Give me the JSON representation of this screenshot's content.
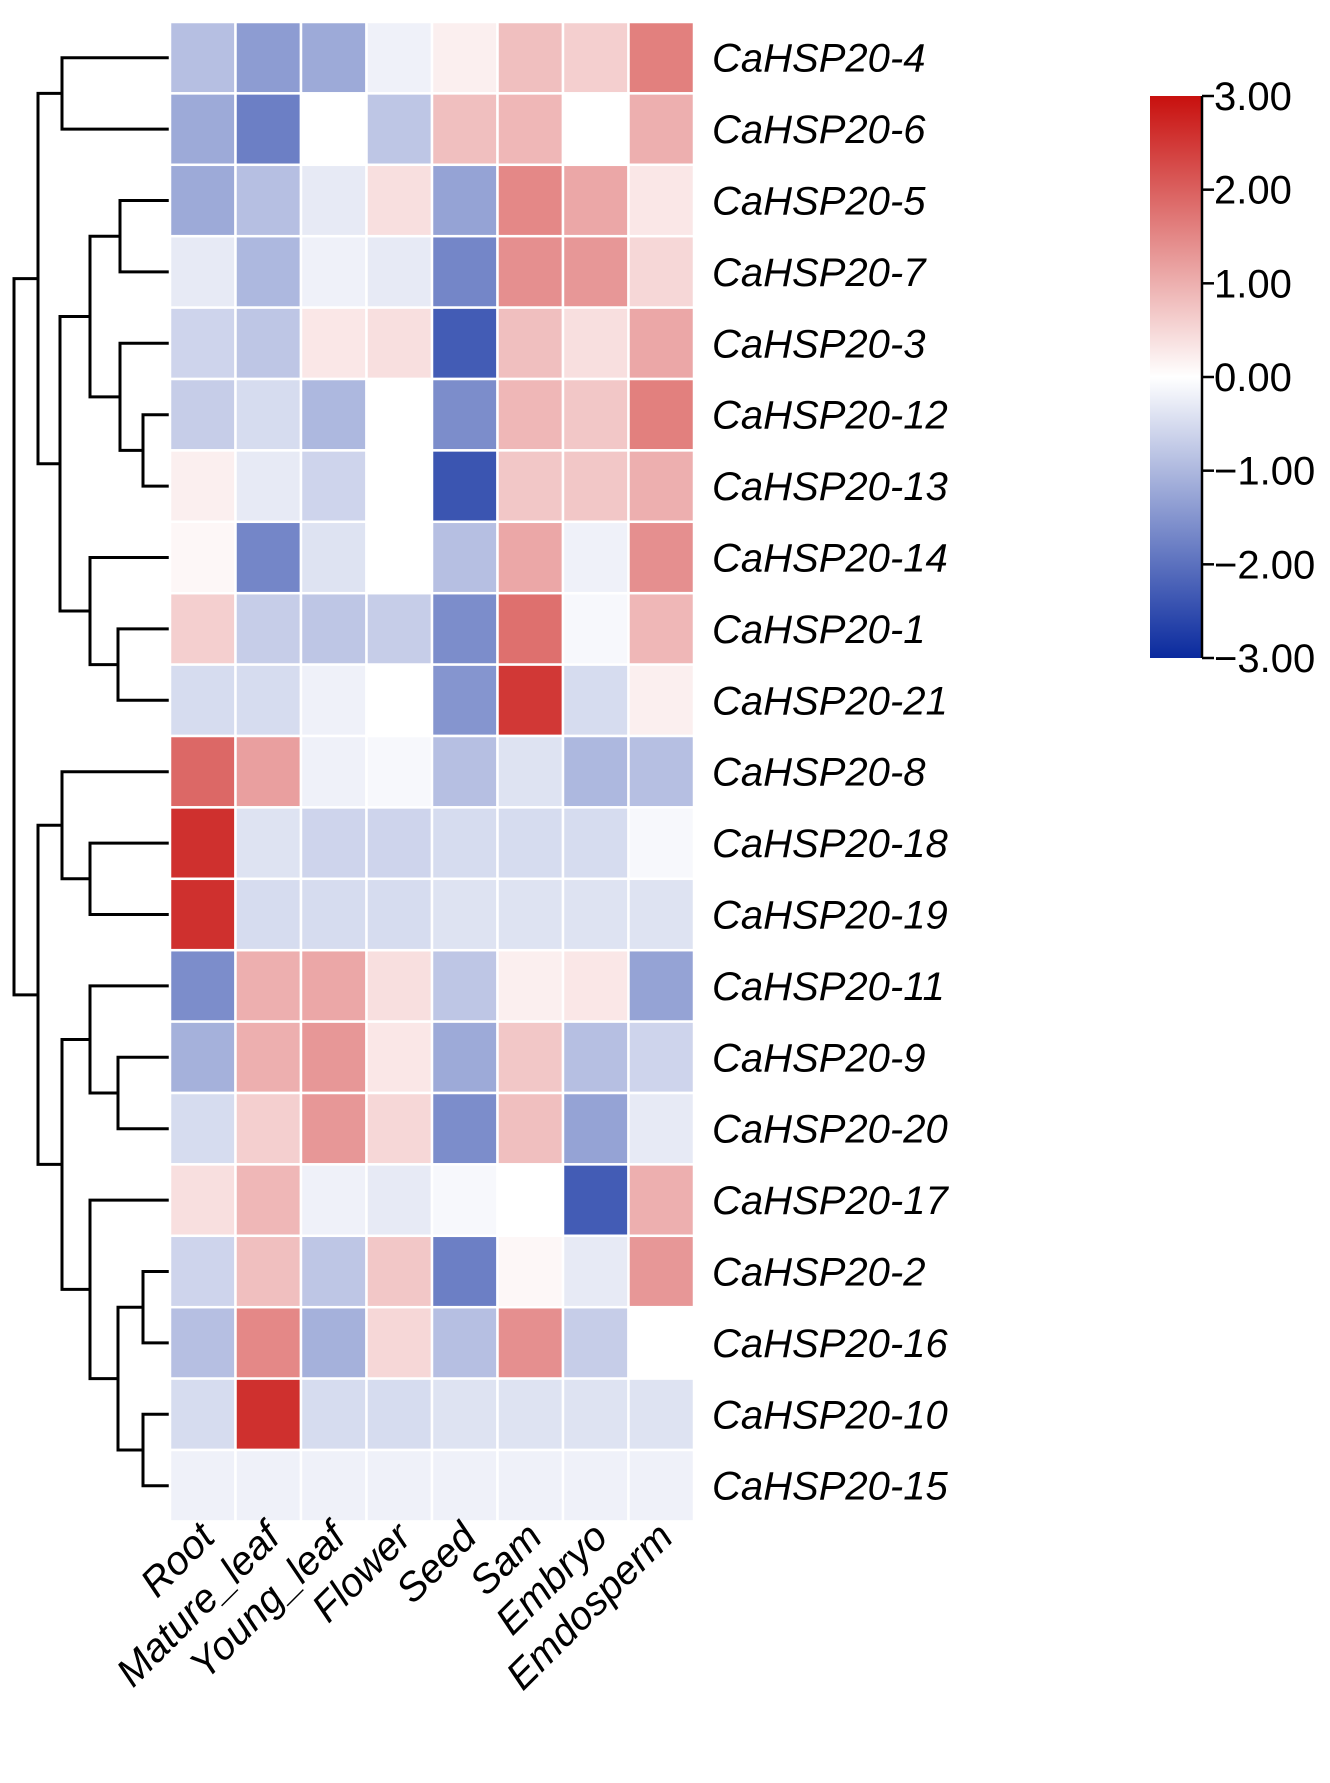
{
  "chart_data": {
    "type": "heatmap",
    "title": "",
    "columns": [
      "Root",
      "Mature_leaf",
      "Young_leaf",
      "Flower",
      "Seed",
      "Sam",
      "Embryo",
      "Emdosperm"
    ],
    "rows": [
      "CaHSP20-4",
      "CaHSP20-6",
      "CaHSP20-5",
      "CaHSP20-7",
      "CaHSP20-3",
      "CaHSP20-12",
      "CaHSP20-13",
      "CaHSP20-14",
      "CaHSP20-1",
      "CaHSP20-21",
      "CaHSP20-8",
      "CaHSP20-18",
      "CaHSP20-19",
      "CaHSP20-11",
      "CaHSP20-9",
      "CaHSP20-20",
      "CaHSP20-17",
      "CaHSP20-2",
      "CaHSP20-16",
      "CaHSP20-10",
      "CaHSP20-15"
    ],
    "values": [
      [
        -0.9,
        -1.4,
        -1.2,
        -0.2,
        0.2,
        0.8,
        0.6,
        1.6
      ],
      [
        -1.2,
        -1.8,
        0.0,
        -0.8,
        0.8,
        0.9,
        0.0,
        1.0
      ],
      [
        -1.2,
        -0.9,
        -0.3,
        0.4,
        -1.3,
        1.5,
        1.1,
        0.3
      ],
      [
        -0.3,
        -1.0,
        -0.2,
        -0.3,
        -1.7,
        1.4,
        1.3,
        0.5
      ],
      [
        -0.6,
        -0.8,
        0.3,
        0.4,
        -2.3,
        0.8,
        0.4,
        1.1
      ],
      [
        -0.7,
        -0.5,
        -1.0,
        0.0,
        -1.6,
        0.9,
        0.7,
        1.6
      ],
      [
        0.2,
        -0.3,
        -0.6,
        0.0,
        -2.4,
        0.7,
        0.7,
        1.0
      ],
      [
        0.1,
        -1.7,
        -0.4,
        0.0,
        -0.9,
        1.1,
        -0.2,
        1.4
      ],
      [
        0.6,
        -0.7,
        -0.8,
        -0.7,
        -1.6,
        1.8,
        -0.1,
        0.9
      ],
      [
        -0.5,
        -0.5,
        -0.2,
        0.0,
        -1.5,
        2.5,
        -0.5,
        0.2
      ],
      [
        1.9,
        1.2,
        -0.2,
        -0.1,
        -0.9,
        -0.4,
        -1.0,
        -0.9
      ],
      [
        2.6,
        -0.4,
        -0.6,
        -0.6,
        -0.5,
        -0.5,
        -0.5,
        -0.1
      ],
      [
        2.6,
        -0.5,
        -0.5,
        -0.5,
        -0.4,
        -0.4,
        -0.4,
        -0.4
      ],
      [
        -1.6,
        1.0,
        1.1,
        0.4,
        -0.8,
        0.2,
        0.3,
        -1.3
      ],
      [
        -1.1,
        1.0,
        1.3,
        0.3,
        -1.2,
        0.7,
        -0.9,
        -0.6
      ],
      [
        -0.5,
        0.6,
        1.3,
        0.5,
        -1.6,
        0.8,
        -1.3,
        -0.3
      ],
      [
        0.4,
        0.9,
        -0.2,
        -0.3,
        -0.1,
        0.0,
        -2.3,
        1.0
      ],
      [
        -0.6,
        0.8,
        -0.8,
        0.7,
        -1.8,
        0.1,
        -0.3,
        1.3
      ],
      [
        -0.9,
        1.5,
        -1.1,
        0.5,
        -0.9,
        1.4,
        -0.7,
        0.0
      ],
      [
        -0.5,
        2.6,
        -0.5,
        -0.5,
        -0.4,
        -0.4,
        -0.4,
        -0.4
      ],
      [
        -0.2,
        -0.2,
        -0.2,
        -0.2,
        -0.2,
        -0.2,
        -0.2,
        -0.2
      ]
    ],
    "color_scale": {
      "min": -3.0,
      "max": 3.0,
      "low_color": "#0a2a9e",
      "mid_color": "#ffffff",
      "high_color": "#c8100e",
      "tick_labels": [
        "3.00",
        "2.00",
        "1.00",
        "0.00",
        "−1.00",
        "−2.00",
        "−3.00"
      ],
      "ticks": [
        3,
        2,
        1,
        0,
        -1,
        -2,
        -3
      ]
    },
    "dendrogram_placement": "left",
    "legend_placement": "top-right"
  }
}
